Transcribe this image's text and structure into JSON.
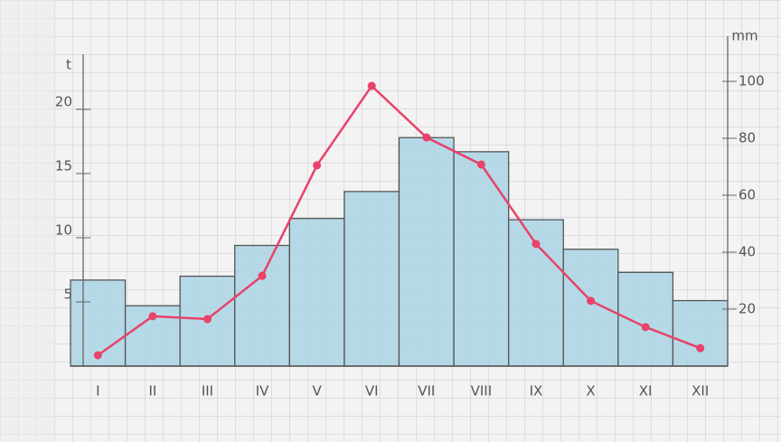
{
  "chart_data": {
    "type": "bar-line",
    "y_label": "t",
    "y2_label": "mm",
    "categories": [
      "I",
      "II",
      "III",
      "IV",
      "V",
      "VI",
      "VII",
      "VIII",
      "IX",
      "X",
      "XI",
      "XII"
    ],
    "series": [
      {
        "type": "bar",
        "color": "#aad3e4",
        "values": [
          6.7,
          4.7,
          7.0,
          9.4,
          11.5,
          13.6,
          17.8,
          16.7,
          11.4,
          9.1,
          7.3,
          5.1
        ]
      },
      {
        "type": "line",
        "axis": "y2",
        "color": "#e8436a",
        "values": [
          3.8,
          17.5,
          16.5,
          31.7,
          70.5,
          98.4,
          80.3,
          70.8,
          42.9,
          22.9,
          13.7,
          6.3
        ]
      }
    ],
    "ylim": [
      0,
      25
    ],
    "yticks": [
      5,
      10,
      15,
      20
    ],
    "y2lim": [
      0,
      100
    ],
    "y2ticks": [
      20,
      40,
      60,
      80,
      100
    ]
  }
}
